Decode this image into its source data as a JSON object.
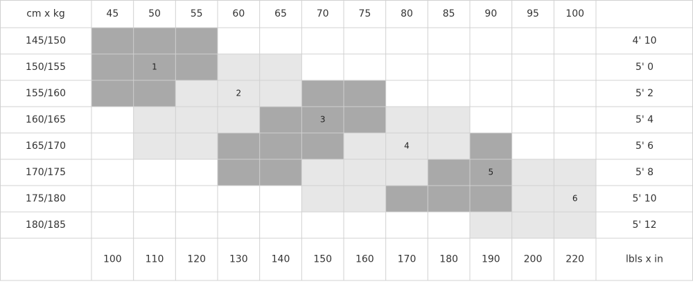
{
  "table": {
    "corner": "cm x kg",
    "weights_kg": [
      45,
      50,
      55,
      60,
      65,
      70,
      75,
      80,
      85,
      90,
      95,
      100
    ],
    "rows": [
      {
        "label": "145/150",
        "height": "4' 10",
        "cells": [
          "dark",
          "dark",
          "dark",
          null,
          null,
          null,
          null,
          null,
          null,
          null,
          null,
          null
        ]
      },
      {
        "label": "150/155",
        "height": "5' 0",
        "cells": [
          "dark",
          {
            "shade": "dark",
            "size": "1"
          },
          "dark",
          "light",
          "light",
          null,
          null,
          null,
          null,
          null,
          null,
          null
        ]
      },
      {
        "label": "155/160",
        "height": "5' 2",
        "cells": [
          "dark",
          "dark",
          "light",
          {
            "shade": "light",
            "size": "2"
          },
          "light",
          "dark",
          "dark",
          null,
          null,
          null,
          null,
          null
        ]
      },
      {
        "label": "160/165",
        "height": "5' 4",
        "cells": [
          null,
          "light",
          "light",
          "light",
          "dark",
          {
            "shade": "dark",
            "size": "3"
          },
          "dark",
          "light",
          "light",
          null,
          null,
          null
        ]
      },
      {
        "label": "165/170",
        "height": "5' 6",
        "cells": [
          null,
          "light",
          "light",
          "dark",
          "dark",
          "dark",
          "light",
          {
            "shade": "light",
            "size": "4"
          },
          "light",
          "dark",
          null,
          null
        ]
      },
      {
        "label": "170/175",
        "height": "5' 8",
        "cells": [
          null,
          null,
          null,
          "dark",
          "dark",
          "light",
          "light",
          "light",
          "dark",
          {
            "shade": "dark",
            "size": "5"
          },
          "light",
          "light"
        ]
      },
      {
        "label": "175/180",
        "height": "5' 10",
        "cells": [
          null,
          null,
          null,
          null,
          null,
          "light",
          "light",
          "dark",
          "dark",
          "dark",
          "light",
          {
            "shade": "light",
            "size": "6"
          }
        ]
      },
      {
        "label": "180/185",
        "height": "5' 12",
        "cells": [
          null,
          null,
          null,
          null,
          null,
          null,
          null,
          null,
          null,
          "light",
          "light",
          "light"
        ]
      }
    ],
    "weights_lbs": [
      100,
      110,
      120,
      130,
      140,
      150,
      160,
      170,
      180,
      190,
      200,
      220
    ],
    "footer_corner": "lbls x in",
    "colors": {
      "dark": "#a9a9a9",
      "light": "#e7e7e7"
    }
  }
}
